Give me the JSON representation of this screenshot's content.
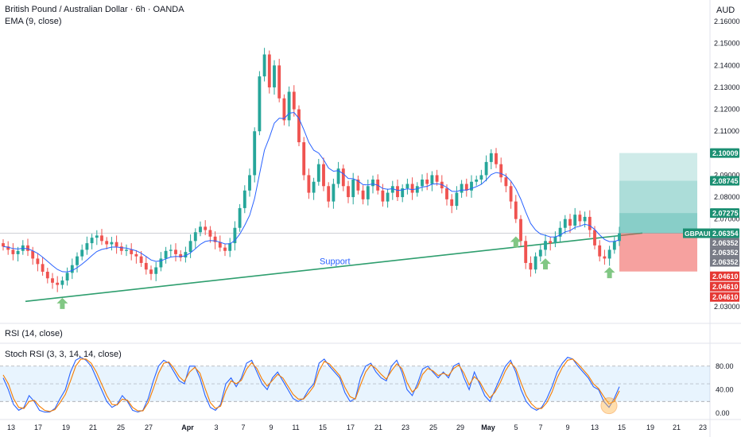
{
  "header": {
    "title": "British Pound / Australian Dollar · 6h · OANDA",
    "indicator": "EMA (9, close)",
    "currency": "AUD"
  },
  "colors": {
    "up": "#26a69a",
    "down": "#ef5350",
    "ema": "#2962ff",
    "support": "#2e9e6e",
    "stoch_k": "#2962ff",
    "stoch_d": "#f57c00",
    "target": "#26a69a",
    "stop": "#ef5350",
    "arrow": "#81c784"
  },
  "chart_data": [
    {
      "type": "candlestick",
      "ylim": [
        2.025,
        2.168
      ],
      "y_ticks": [
        "2.16000",
        "2.15000",
        "2.14000",
        "2.13000",
        "2.12000",
        "2.11000",
        "2.09000",
        "2.08000",
        "2.07000",
        "2.05000",
        "2.03000"
      ],
      "y_tick_values": [
        2.16,
        2.15,
        2.14,
        2.13,
        2.12,
        2.11,
        2.09,
        2.08,
        2.07,
        2.05,
        2.03
      ],
      "x_ticks": [
        "13",
        "17",
        "19",
        "21",
        "25",
        "27",
        "Apr",
        "3",
        "7",
        "9",
        "11",
        "15",
        "17",
        "21",
        "23",
        "25",
        "29",
        "May",
        "5",
        "7",
        "9",
        "13",
        "15",
        "19",
        "21",
        "23"
      ],
      "annotation": "Support",
      "support_line": [
        [
          2.0325,
          0
        ],
        [
          2.0636,
          1
        ]
      ],
      "close_series": [
        2.0575,
        2.056,
        2.054,
        2.0555,
        2.058,
        2.0555,
        2.052,
        2.0495,
        2.046,
        2.043,
        2.041,
        2.04,
        2.042,
        2.0455,
        2.049,
        2.053,
        2.056,
        2.059,
        2.0615,
        2.0625,
        2.06,
        2.0585,
        2.0595,
        2.0575,
        2.0555,
        2.056,
        2.054,
        2.053,
        2.05,
        2.047,
        2.045,
        2.048,
        2.052,
        2.0555,
        2.056,
        2.054,
        2.0525,
        2.055,
        2.06,
        2.064,
        2.0665,
        2.065,
        2.062,
        2.0595,
        2.057,
        2.0555,
        2.059,
        2.066,
        2.075,
        2.083,
        2.09,
        2.11,
        2.135,
        2.145,
        2.13,
        2.14,
        2.125,
        2.115,
        2.128,
        2.12,
        2.105,
        2.09,
        2.082,
        2.087,
        2.095,
        2.085,
        2.078,
        2.086,
        2.093,
        2.085,
        2.08,
        2.088,
        2.083,
        2.079,
        2.085,
        2.088,
        2.083,
        2.078,
        2.082,
        2.085,
        2.08,
        2.084,
        2.086,
        2.082,
        2.085,
        2.088,
        2.086,
        2.09,
        2.087,
        2.084,
        2.079,
        2.076,
        2.082,
        2.086,
        2.083,
        2.087,
        2.088,
        2.09,
        2.096,
        2.1,
        2.095,
        2.089,
        2.085,
        2.078,
        2.07,
        2.06,
        2.05,
        2.047,
        2.053,
        2.056,
        2.06,
        2.059,
        2.062,
        2.066,
        2.07,
        2.067,
        2.072,
        2.069,
        2.071,
        2.065,
        2.058,
        2.053,
        2.052,
        2.056,
        2.06,
        2.0635
      ],
      "ema_label": "EMA (9, close)",
      "position": {
        "symbol": "GBPAUD",
        "price": 2.06354,
        "targets": [
          2.10009,
          2.08745,
          2.07275
        ],
        "stop": 2.0461,
        "entry_lines": [
          2.06352,
          2.06352,
          2.06352
        ],
        "stop_lines": [
          2.0461,
          2.0461,
          2.0461
        ]
      },
      "price_labels": {
        "target_1": "2.10009",
        "target_2": "2.08745",
        "target_3": "2.07275",
        "symbol": "GBPAUD",
        "current": "2.06354",
        "entry": [
          "2.06352",
          "2.06352",
          "2.06352"
        ],
        "stop": [
          "2.04610",
          "2.04610",
          "2.04610"
        ]
      },
      "arrows_at_index": [
        12,
        104,
        110,
        123
      ]
    },
    {
      "type": "line",
      "title": "RSI (14, close)"
    },
    {
      "type": "line",
      "title": "Stoch RSI (3, 3, 14, 14, close)",
      "ylim": [
        -8,
        100
      ],
      "y_ticks": [
        "80.00",
        "40.00",
        "0.00"
      ],
      "y_tick_values": [
        80,
        40,
        0
      ],
      "band": [
        20,
        80
      ],
      "series": [
        {
          "values": [
            60,
            40,
            15,
            5,
            10,
            30,
            20,
            5,
            2,
            2,
            8,
            25,
            40,
            70,
            90,
            95,
            90,
            80,
            60,
            40,
            20,
            10,
            15,
            30,
            20,
            5,
            2,
            5,
            25,
            55,
            80,
            90,
            85,
            70,
            55,
            50,
            80,
            80,
            60,
            30,
            10,
            5,
            15,
            50,
            60,
            45,
            60,
            85,
            90,
            70,
            50,
            40,
            60,
            70,
            55,
            40,
            25,
            20,
            25,
            40,
            50,
            85,
            92,
            80,
            70,
            60,
            35,
            20,
            25,
            60,
            80,
            85,
            70,
            60,
            55,
            80,
            90,
            70,
            40,
            30,
            50,
            75,
            80,
            70,
            60,
            70,
            60,
            80,
            85,
            60,
            40,
            70,
            50,
            30,
            20,
            40,
            60,
            80,
            90,
            70,
            40,
            20,
            10,
            5,
            10,
            25,
            45,
            70,
            85,
            95,
            92,
            80,
            70,
            60,
            45,
            40,
            20,
            10,
            25,
            45
          ]
        },
        {
          "values": [
            65,
            50,
            25,
            10,
            8,
            20,
            22,
            12,
            5,
            3,
            6,
            18,
            32,
            55,
            80,
            92,
            92,
            85,
            70,
            50,
            30,
            15,
            14,
            24,
            22,
            10,
            4,
            4,
            18,
            42,
            68,
            85,
            87,
            76,
            62,
            54,
            70,
            78,
            68,
            42,
            18,
            8,
            12,
            38,
            55,
            50,
            56,
            75,
            86,
            76,
            58,
            46,
            56,
            66,
            60,
            46,
            32,
            24,
            24,
            34,
            46,
            72,
            88,
            84,
            74,
            64,
            44,
            28,
            24,
            48,
            70,
            82,
            76,
            66,
            58,
            72,
            84,
            76,
            52,
            36,
            44,
            66,
            76,
            72,
            64,
            68,
            64,
            76,
            82,
            68,
            48,
            62,
            54,
            38,
            26,
            36,
            52,
            72,
            86,
            76,
            52,
            30,
            16,
            8,
            8,
            18,
            36,
            60,
            78,
            90,
            92,
            84,
            74,
            64,
            50,
            42,
            28,
            16,
            20,
            38
          ]
        }
      ],
      "highlight_index": 117
    }
  ]
}
